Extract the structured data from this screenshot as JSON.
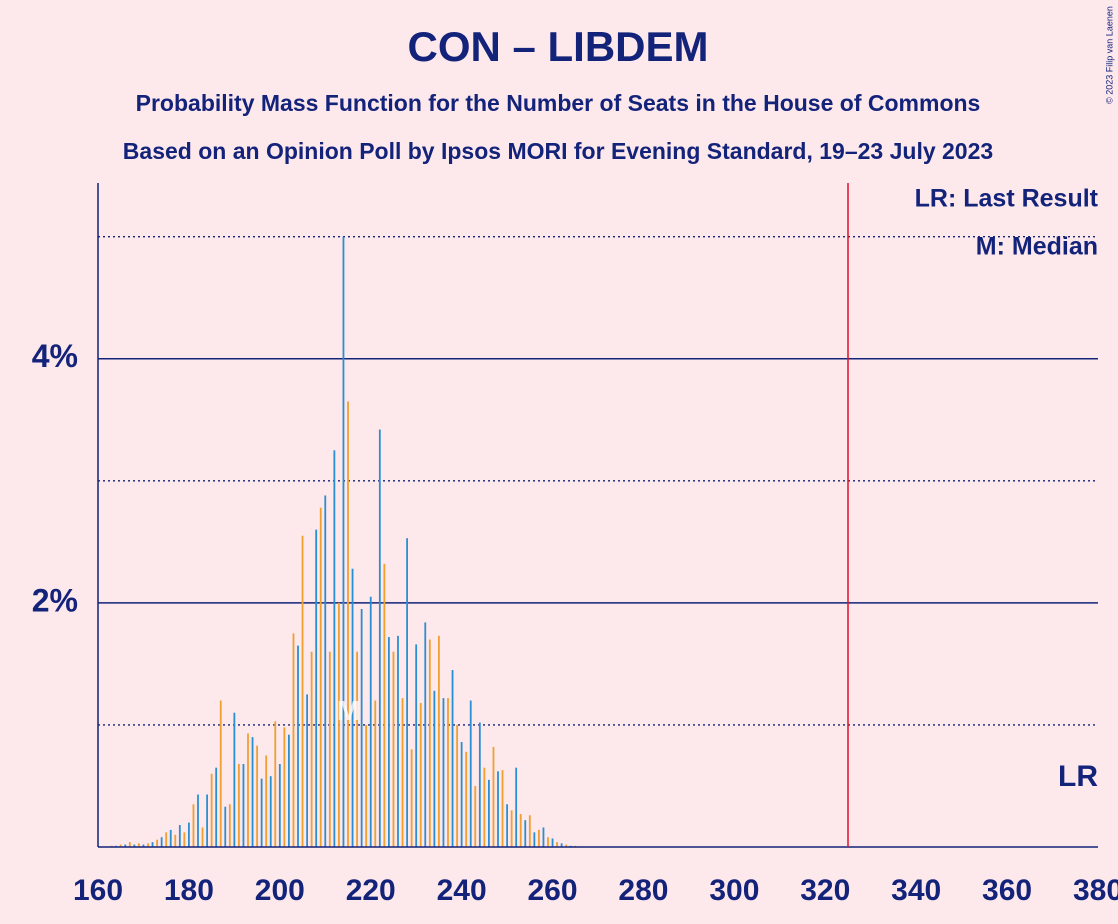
{
  "chart_data": {
    "type": "bar",
    "title": "CON – LIBDEM",
    "subtitle": "Probability Mass Function for the Number of Seats in the House of Commons",
    "subtitle2": "Based on an Opinion Poll by Ipsos MORI for Evening Standard, 19–23 July 2023",
    "credit": "© 2023 Filip van Laenen",
    "xlim": [
      160,
      380
    ],
    "xticks": [
      160,
      180,
      200,
      220,
      240,
      260,
      280,
      300,
      320,
      340,
      360,
      380
    ],
    "ylim": [
      0,
      5.44
    ],
    "yticks": [
      {
        "value": 2,
        "label": "2%"
      },
      {
        "value": 4,
        "label": "4%"
      }
    ],
    "minor_yticks": [
      1,
      3,
      5
    ],
    "series": [
      {
        "color": "#f0a030",
        "x": [
          163,
          165,
          167,
          169,
          171,
          173,
          175,
          177,
          179,
          181,
          183,
          185,
          187,
          189,
          191,
          193,
          195,
          197,
          199,
          201,
          203,
          205,
          207,
          209,
          211,
          213,
          215,
          217,
          219,
          221,
          223,
          225,
          227,
          229,
          231,
          233,
          235,
          237,
          239,
          241,
          243,
          245,
          247,
          249,
          251,
          253,
          255,
          257,
          259,
          261,
          263,
          265
        ],
        "values": [
          0.01,
          0.02,
          0.04,
          0.03,
          0.03,
          0.06,
          0.12,
          0.1,
          0.12,
          0.35,
          0.16,
          0.6,
          1.2,
          0.35,
          0.68,
          0.93,
          0.83,
          0.75,
          1.03,
          0.98,
          1.75,
          2.55,
          1.6,
          2.78,
          1.6,
          2.0,
          3.65,
          1.6,
          1.0,
          1.2,
          2.32,
          1.6,
          1.22,
          0.8,
          1.18,
          1.7,
          1.73,
          1.22,
          1.0,
          0.78,
          0.5,
          0.65,
          0.82,
          0.63,
          0.3,
          0.27,
          0.26,
          0.14,
          0.08,
          0.04,
          0.02,
          0.01
        ]
      },
      {
        "color": "#2a8fd0",
        "x": [
          164,
          166,
          168,
          170,
          172,
          174,
          176,
          178,
          180,
          182,
          184,
          186,
          188,
          190,
          192,
          194,
          196,
          198,
          200,
          202,
          204,
          206,
          208,
          210,
          212,
          214,
          216,
          218,
          220,
          222,
          224,
          226,
          228,
          230,
          232,
          234,
          236,
          238,
          240,
          242,
          244,
          246,
          248,
          250,
          252,
          254,
          256,
          258,
          260,
          262,
          264
        ],
        "values": [
          0.01,
          0.02,
          0.02,
          0.02,
          0.04,
          0.08,
          0.14,
          0.18,
          0.2,
          0.43,
          0.43,
          0.65,
          0.33,
          1.1,
          0.68,
          0.9,
          0.56,
          0.58,
          0.68,
          0.92,
          1.65,
          1.25,
          2.6,
          2.88,
          3.25,
          5.0,
          2.28,
          1.95,
          2.05,
          3.42,
          1.72,
          1.73,
          2.53,
          1.66,
          1.84,
          1.28,
          1.22,
          1.45,
          0.86,
          1.2,
          1.02,
          0.55,
          0.62,
          0.35,
          0.65,
          0.22,
          0.12,
          0.16,
          0.07,
          0.03,
          0.01
        ]
      }
    ],
    "last_result": {
      "x": 325,
      "label": "LR",
      "color": "#e0102a"
    },
    "median": {
      "x": 216,
      "label": "M"
    },
    "legend": [
      "LR: Last Result",
      "M: Median"
    ]
  }
}
